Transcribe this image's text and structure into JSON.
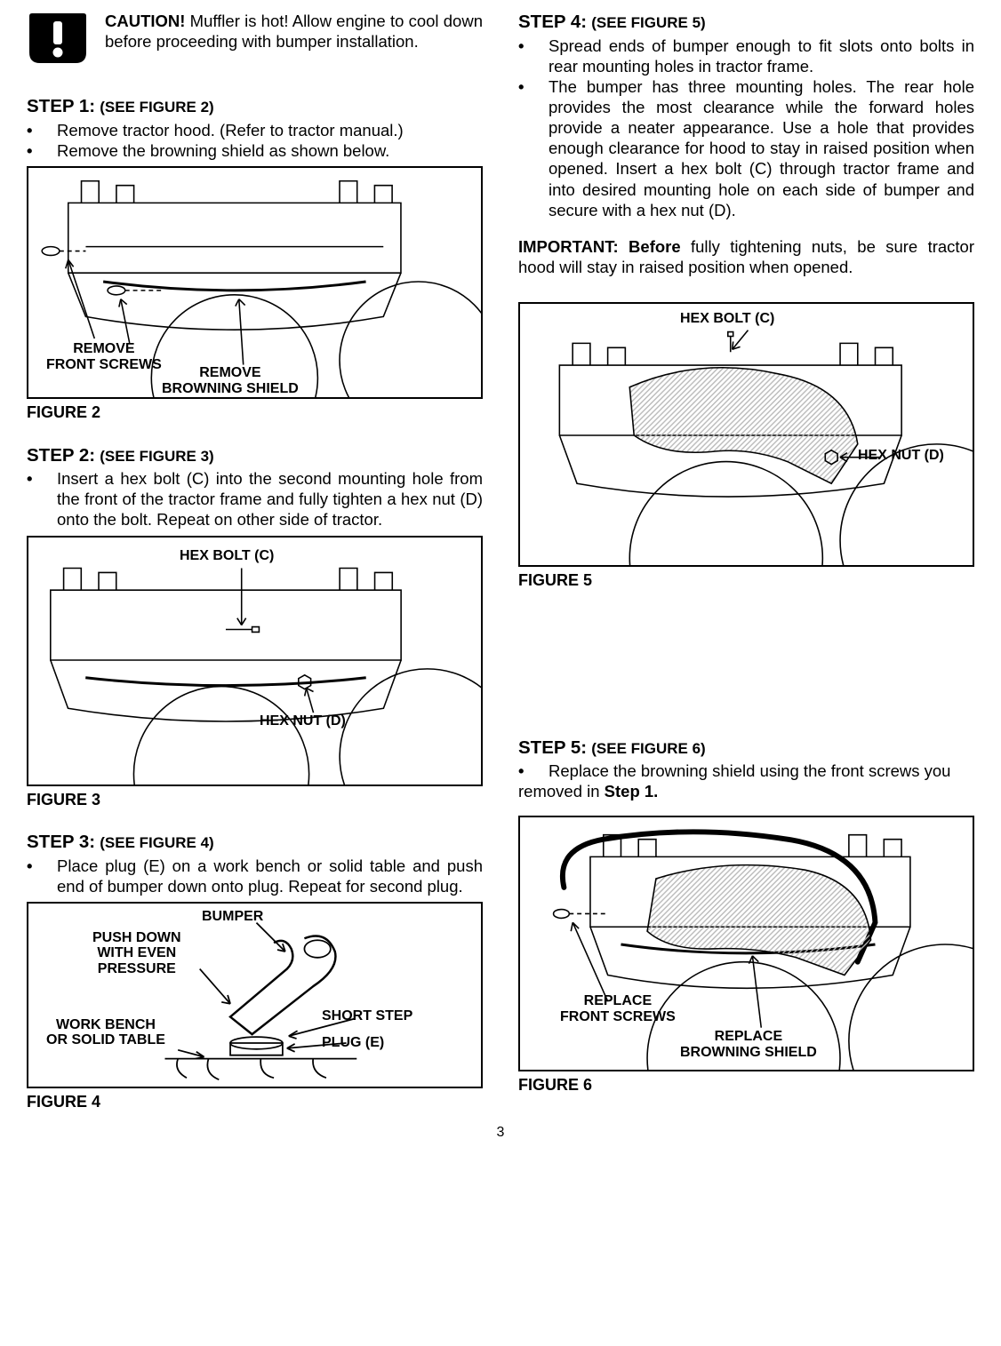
{
  "caution": {
    "label": "CAUTION!",
    "text": " Muffler is hot! Allow engine to cool down before proceeding with bumper installation."
  },
  "steps": {
    "s1": {
      "title": "STEP 1:",
      "sub": "(SEE FIGURE 2)",
      "items": [
        "Remove tractor hood. (Refer to tractor manual.)",
        "Remove the browning shield as shown below."
      ]
    },
    "s2": {
      "title": "STEP 2:",
      "sub": "(SEE FIGURE 3)",
      "items": [
        "Insert a hex bolt (C) into the second mounting hole from the front of the tractor frame and fully tighten a hex nut (D) onto the bolt.  Repeat on other side of tractor."
      ]
    },
    "s3": {
      "title": "STEP 3:",
      "sub": "(SEE FIGURE 4)",
      "items": [
        "Place plug (E) on a work bench or solid table and push end of bumper down onto plug. Repeat for second plug."
      ]
    },
    "s4": {
      "title": "STEP 4:",
      "sub": "(SEE FIGURE 5)",
      "items": [
        "Spread ends of bumper enough to fit slots onto bolts in rear mounting holes in tractor frame.",
        "The bumper has three mounting holes. The rear hole provides the most clearance while the forward holes provide a neater appearance. Use a hole that provides enough clearance for hood to stay in raised position when opened. Insert a hex bolt (C) through tractor frame and into desired mounting hole on each side of bumper and secure with a hex nut (D)."
      ]
    },
    "s5": {
      "title": "STEP 5:",
      "sub": "(SEE FIGURE 6)",
      "items": [
        "Replace the browning shield using the front screws you"
      ],
      "trail_prefix": "removed in ",
      "trail_bold": "Step 1."
    }
  },
  "important": {
    "label": "IMPORTANT:  Before",
    "text": " fully tightening nuts, be sure tractor hood will stay in raised position when opened."
  },
  "figures": {
    "f2": {
      "caption": "FIGURE 2",
      "labels": {
        "a": "REMOVE\nFRONT SCREWS",
        "b": "REMOVE\nBROWNING SHIELD"
      }
    },
    "f3": {
      "caption": "FIGURE 3",
      "labels": {
        "a": "HEX BOLT (C)",
        "b": "HEX NUT (D)"
      }
    },
    "f4": {
      "caption": "FIGURE 4",
      "labels": {
        "a": "BUMPER",
        "b": "PUSH DOWN\nWITH EVEN\nPRESSURE",
        "c": "WORK BENCH\nOR SOLID TABLE",
        "d": "SHORT STEP",
        "e": "PLUG (E)"
      }
    },
    "f5": {
      "caption": "FIGURE 5",
      "labels": {
        "a": "HEX BOLT (C)",
        "b": "HEX NUT (D)"
      }
    },
    "f6": {
      "caption": "FIGURE 6",
      "labels": {
        "a": "REPLACE\nFRONT SCREWS",
        "b": "REPLACE\nBROWNING SHIELD"
      }
    }
  },
  "page_number": "3",
  "colors": {
    "text": "#000000",
    "bg": "#ffffff",
    "line": "#000000",
    "hatch_gray": "#b8b8b8"
  }
}
